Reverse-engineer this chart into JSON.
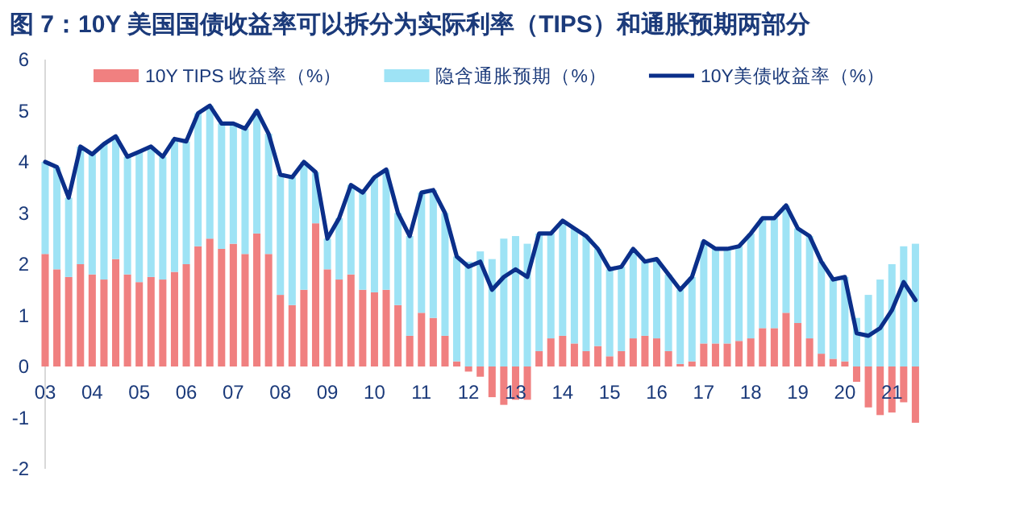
{
  "chart_data": {
    "type": "bar",
    "title": "图 7：10Y 美国国债收益率可以拆分为实际利率（TIPS）和通胀预期两部分",
    "stacked": true,
    "legend": "top",
    "grid": false,
    "x": [
      "2003-01",
      "2003-04",
      "2003-07",
      "2003-10",
      "2004-01",
      "2004-04",
      "2004-07",
      "2004-10",
      "2005-01",
      "2005-04",
      "2005-07",
      "2005-10",
      "2006-01",
      "2006-04",
      "2006-07",
      "2006-10",
      "2007-01",
      "2007-04",
      "2007-07",
      "2007-10",
      "2008-01",
      "2008-04",
      "2008-07",
      "2008-10",
      "2009-01",
      "2009-04",
      "2009-07",
      "2009-10",
      "2010-01",
      "2010-04",
      "2010-07",
      "2010-10",
      "2011-01",
      "2011-04",
      "2011-07",
      "2011-10",
      "2012-01",
      "2012-04",
      "2012-07",
      "2012-10",
      "2013-01",
      "2013-04",
      "2013-07",
      "2013-10",
      "2014-01",
      "2014-04",
      "2014-07",
      "2014-10",
      "2015-01",
      "2015-04",
      "2015-07",
      "2015-10",
      "2016-01",
      "2016-04",
      "2016-07",
      "2016-10",
      "2017-01",
      "2017-04",
      "2017-07",
      "2017-10",
      "2018-01",
      "2018-04",
      "2018-07",
      "2018-10",
      "2019-01",
      "2019-04",
      "2019-07",
      "2019-10",
      "2020-01",
      "2020-04",
      "2020-07",
      "2020-10",
      "2021-01",
      "2021-04",
      "2021-07"
    ],
    "series": [
      {
        "name": "10Y TIPS 收益率（%）",
        "color": "#f08080",
        "values": [
          2.2,
          1.9,
          1.75,
          2.0,
          1.8,
          1.7,
          2.1,
          1.8,
          1.65,
          1.75,
          1.7,
          1.85,
          2.0,
          2.35,
          2.5,
          2.3,
          2.4,
          2.2,
          2.6,
          2.2,
          1.4,
          1.2,
          1.5,
          2.8,
          1.9,
          1.7,
          1.8,
          1.5,
          1.45,
          1.5,
          1.2,
          0.6,
          1.05,
          0.95,
          0.6,
          0.1,
          -0.1,
          -0.2,
          -0.6,
          -0.75,
          -0.65,
          -0.65,
          0.3,
          0.55,
          0.6,
          0.45,
          0.3,
          0.4,
          0.2,
          0.3,
          0.55,
          0.6,
          0.55,
          0.3,
          0.05,
          0.1,
          0.45,
          0.45,
          0.45,
          0.5,
          0.55,
          0.75,
          0.75,
          1.05,
          0.85,
          0.55,
          0.25,
          0.15,
          0.1,
          -0.3,
          -0.8,
          -0.95,
          -0.9,
          -0.7,
          -1.1
        ]
      },
      {
        "name": "隐含通胀预期（%）",
        "color": "#9ee3f5",
        "values": [
          1.8,
          2.0,
          1.55,
          2.3,
          2.35,
          2.65,
          2.4,
          2.3,
          2.55,
          2.55,
          2.4,
          2.6,
          2.4,
          2.6,
          2.6,
          2.45,
          2.35,
          2.45,
          2.4,
          2.35,
          2.35,
          2.5,
          2.5,
          1.0,
          0.6,
          1.2,
          1.75,
          1.9,
          2.25,
          2.35,
          1.8,
          1.95,
          2.35,
          2.5,
          2.4,
          2.05,
          2.05,
          2.25,
          2.1,
          2.5,
          2.55,
          2.4,
          2.3,
          2.05,
          2.25,
          2.25,
          2.25,
          1.9,
          1.7,
          1.65,
          1.75,
          1.45,
          1.55,
          1.5,
          1.45,
          1.65,
          2.0,
          1.85,
          1.85,
          1.85,
          2.05,
          2.15,
          2.15,
          2.1,
          1.85,
          2.0,
          1.8,
          1.55,
          1.65,
          0.95,
          1.4,
          1.7,
          2.0,
          2.35,
          2.4
        ]
      },
      {
        "name": "10Y美债收益率（%）",
        "type": "line",
        "color": "#0b2f8a",
        "values": [
          4.0,
          3.9,
          3.3,
          4.3,
          4.15,
          4.35,
          4.5,
          4.1,
          4.2,
          4.3,
          4.1,
          4.45,
          4.4,
          4.95,
          5.1,
          4.75,
          4.75,
          4.65,
          5.0,
          4.55,
          3.75,
          3.7,
          4.0,
          3.8,
          2.5,
          2.9,
          3.55,
          3.4,
          3.7,
          3.85,
          3.0,
          2.55,
          3.4,
          3.45,
          3.0,
          2.15,
          1.95,
          2.05,
          1.5,
          1.75,
          1.9,
          1.75,
          2.6,
          2.6,
          2.85,
          2.7,
          2.55,
          2.3,
          1.9,
          1.95,
          2.3,
          2.05,
          2.1,
          1.8,
          1.5,
          1.75,
          2.45,
          2.3,
          2.3,
          2.35,
          2.6,
          2.9,
          2.9,
          3.15,
          2.7,
          2.55,
          2.05,
          1.7,
          1.75,
          0.65,
          0.6,
          0.75,
          1.1,
          1.65,
          1.3
        ]
      }
    ],
    "xlim": [
      "2003-01",
      "2021-10"
    ],
    "xticks": [
      {
        "value": "2003-01",
        "label": "03"
      },
      {
        "value": "2004-01",
        "label": "04"
      },
      {
        "value": "2005-01",
        "label": "05"
      },
      {
        "value": "2006-01",
        "label": "06"
      },
      {
        "value": "2007-01",
        "label": "07"
      },
      {
        "value": "2008-01",
        "label": "08"
      },
      {
        "value": "2009-01",
        "label": "09"
      },
      {
        "value": "2010-01",
        "label": "10"
      },
      {
        "value": "2011-01",
        "label": "11"
      },
      {
        "value": "2012-01",
        "label": "12"
      },
      {
        "value": "2013-01",
        "label": "13"
      },
      {
        "value": "2014-01",
        "label": "14"
      },
      {
        "value": "2015-01",
        "label": "15"
      },
      {
        "value": "2016-01",
        "label": "16"
      },
      {
        "value": "2017-01",
        "label": "17"
      },
      {
        "value": "2018-01",
        "label": "18"
      },
      {
        "value": "2019-01",
        "label": "19"
      },
      {
        "value": "2020-01",
        "label": "20"
      },
      {
        "value": "2021-01",
        "label": "21"
      }
    ],
    "ylim": [
      -2,
      6
    ],
    "yticks": [
      -2,
      -1,
      0,
      1,
      2,
      3,
      4,
      5,
      6
    ]
  }
}
